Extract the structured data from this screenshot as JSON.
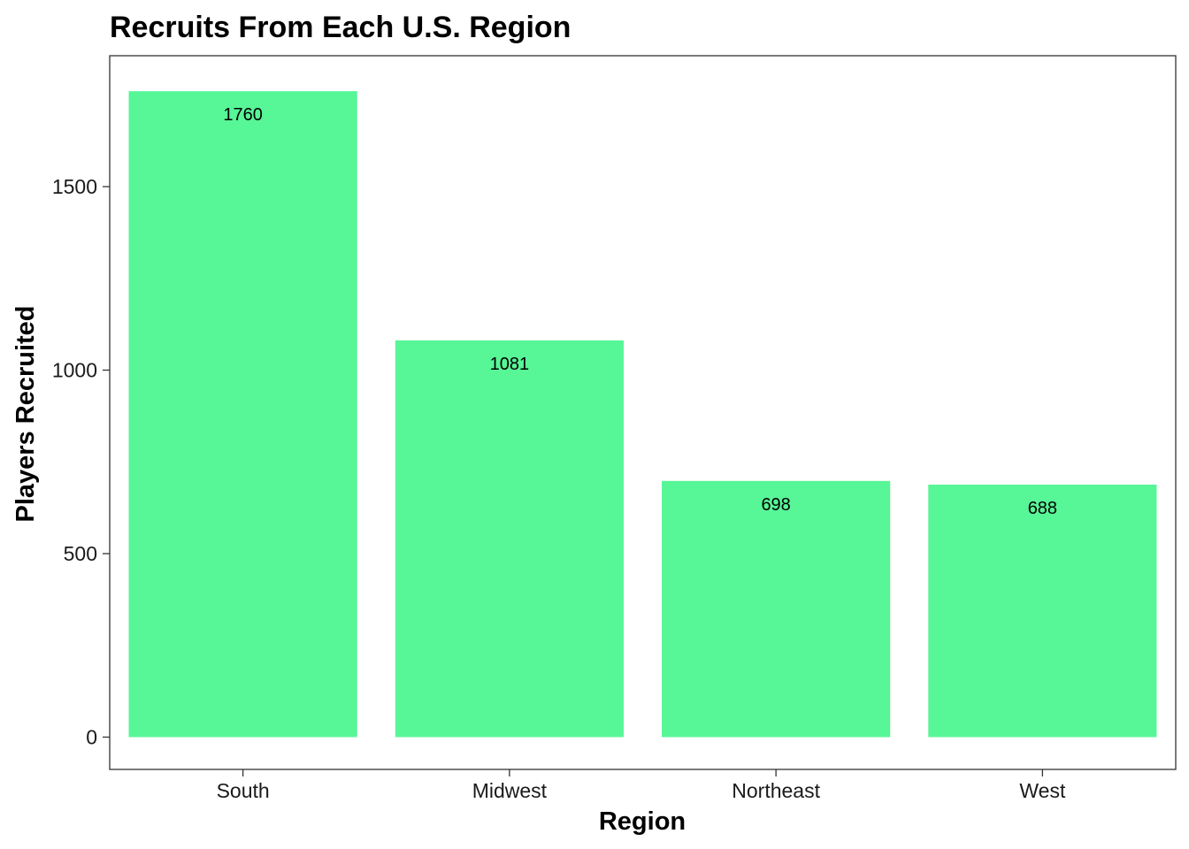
{
  "chart_data": {
    "type": "bar",
    "title": "Recruits From Each U.S. Region",
    "xlabel": "Region",
    "ylabel": "Players Recruited",
    "categories": [
      "South",
      "Midwest",
      "Northeast",
      "West"
    ],
    "values": [
      1760,
      1081,
      698,
      688
    ],
    "data_labels": [
      "1760",
      "1081",
      "698",
      "688"
    ],
    "yticks": [
      0,
      500,
      1000,
      1500
    ],
    "ytick_labels": [
      "0",
      "500",
      "1000",
      "1500"
    ],
    "ylim": [
      -88,
      1848
    ],
    "grid": false,
    "legend": "none",
    "bar_color": "#57F697",
    "panel_border_color": "#333333"
  }
}
